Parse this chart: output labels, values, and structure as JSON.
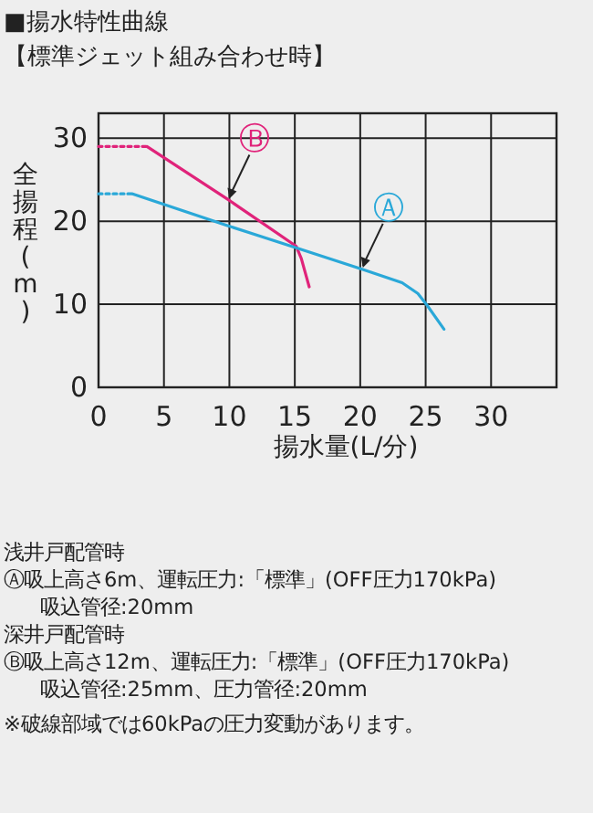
{
  "chart_data": {
    "type": "line",
    "title": "■揚水特性曲線",
    "subtitle": "【標準ジェット組み合わせ時】",
    "xlabel": "揚水量(L/分)",
    "ylabel": "全揚程(m)",
    "xlim": [
      0,
      35
    ],
    "ylim": [
      0,
      33
    ],
    "xticks": [
      0,
      5,
      10,
      15,
      20,
      25,
      30
    ],
    "yticks": [
      0,
      10,
      20,
      30
    ],
    "grid": true,
    "legend": false,
    "series": [
      {
        "color": "#e0237a",
        "line_style": "dotted",
        "x": [
          0,
          3.7
        ],
        "values": [
          29,
          29
        ]
      },
      {
        "name": "Ⓑ",
        "color": "#e0237a",
        "line_style": "solid",
        "x": [
          3.7,
          10,
          15.1,
          15.5,
          16.1
        ],
        "values": [
          29,
          22.5,
          17,
          15.5,
          12.1
        ]
      },
      {
        "color": "#2aa8d8",
        "line_style": "dotted",
        "x": [
          0,
          2.6
        ],
        "values": [
          23.3,
          23.3
        ]
      },
      {
        "name": "Ⓐ",
        "color": "#2aa8d8",
        "line_style": "solid",
        "x": [
          2.6,
          9.8,
          15.1,
          20.2,
          23.2,
          24.4,
          25.1,
          26.4
        ],
        "values": [
          23.3,
          19.5,
          16.8,
          14.2,
          12.6,
          11.3,
          9.9,
          7
        ]
      }
    ],
    "annotations": [
      "浅井戸配管時",
      "Ⓐ吸上高さ6m、運転圧力:「標準」(OFF圧力170kPa)",
      "吸込管径:20mm",
      "深井戸配管時",
      "Ⓑ吸上高さ12m、運転圧力:「標準」(OFF圧力170kPa)",
      "吸込管径:25mm、圧力管径:20mm",
      "※破線部域では60kPaの圧力変動があります。"
    ]
  }
}
